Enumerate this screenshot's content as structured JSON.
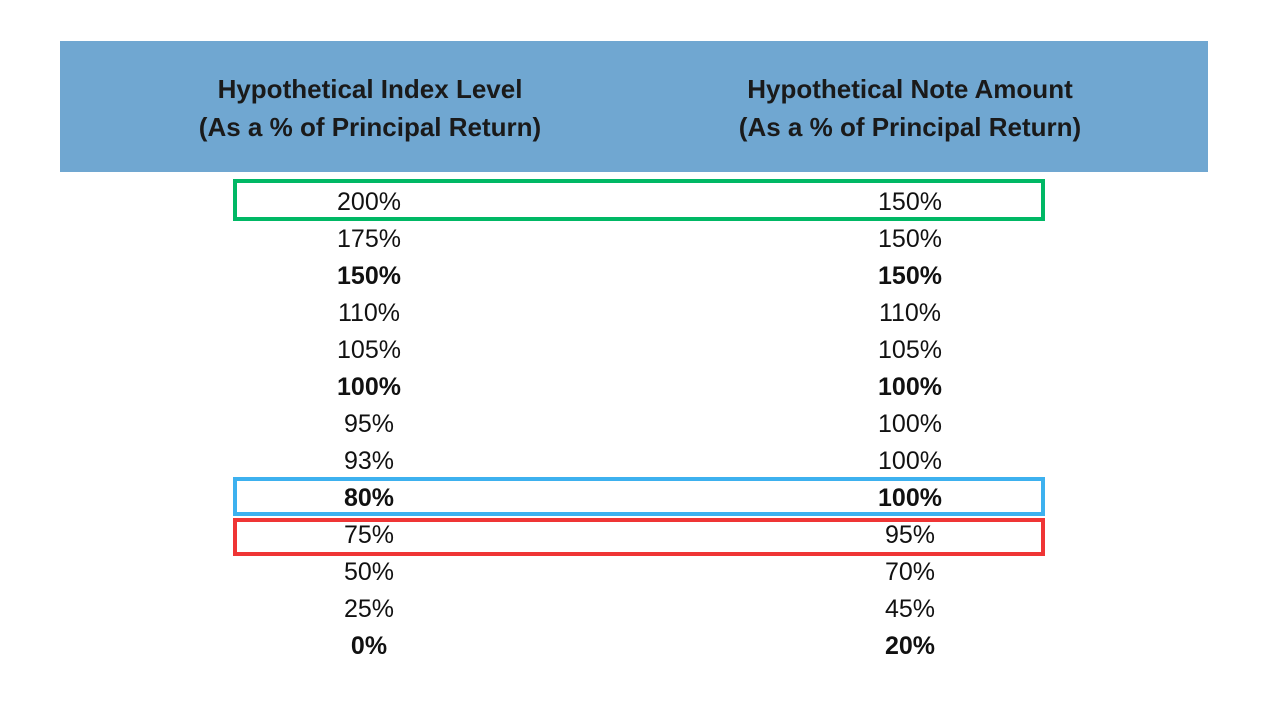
{
  "header": {
    "left_line1": "Hypothetical Index Level",
    "left_line2": "(As a % of Principal Return)",
    "right_line1": "Hypothetical Note Amount",
    "right_line2": "(As a % of Principal Return)"
  },
  "rows": [
    {
      "index": "200%",
      "note": "150%",
      "bold": false
    },
    {
      "index": "175%",
      "note": "150%",
      "bold": false
    },
    {
      "index": "150%",
      "note": "150%",
      "bold": true
    },
    {
      "index": "110%",
      "note": "110%",
      "bold": false
    },
    {
      "index": "105%",
      "note": "105%",
      "bold": false
    },
    {
      "index": "100%",
      "note": "100%",
      "bold": true
    },
    {
      "index": "95%",
      "note": "100%",
      "bold": false
    },
    {
      "index": "93%",
      "note": "100%",
      "bold": false
    },
    {
      "index": "80%",
      "note": "100%",
      "bold": true
    },
    {
      "index": "75%",
      "note": "95%",
      "bold": false
    },
    {
      "index": "50%",
      "note": "70%",
      "bold": false
    },
    {
      "index": "25%",
      "note": "45%",
      "bold": false
    },
    {
      "index": "0%",
      "note": "20%",
      "bold": true
    }
  ],
  "colors": {
    "header_bg": "#70a7d1",
    "highlight_green": "#00b865",
    "highlight_blue": "#3db1ef",
    "highlight_red": "#ef3535"
  }
}
